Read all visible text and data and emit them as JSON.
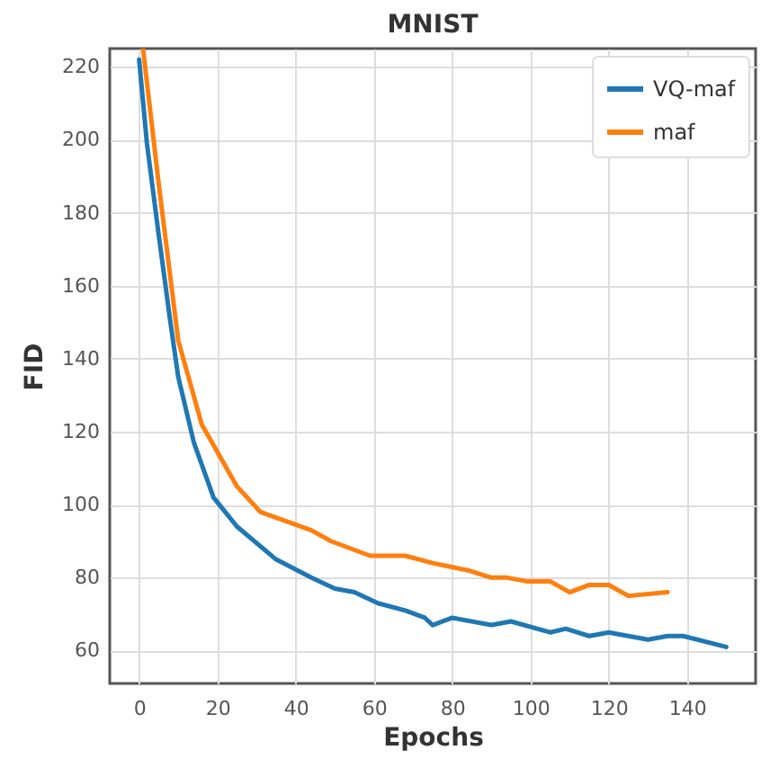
{
  "chart_data": {
    "type": "line",
    "title": "MNIST",
    "xlabel": "Epochs",
    "ylabel": "FID",
    "xlim": [
      -7.5,
      157.5
    ],
    "xticks": [
      0,
      20,
      40,
      60,
      80,
      100,
      120,
      140
    ],
    "ylim": [
      51,
      225
    ],
    "yticks": [
      60,
      80,
      100,
      120,
      140,
      160,
      180,
      200,
      220
    ],
    "grid": true,
    "legend": "top right",
    "line_style": "solid",
    "series": [
      {
        "name": "VQ-maf",
        "color": "#1f77b4",
        "x": [
          0,
          2,
          5,
          8,
          10,
          14,
          19,
          25,
          35,
          44,
          50,
          55,
          61,
          68,
          73,
          75,
          80,
          90,
          95,
          105,
          109,
          115,
          120,
          130,
          135,
          139,
          150
        ],
        "values": [
          222,
          199,
          174,
          150,
          135,
          117,
          102,
          94,
          85,
          80,
          77,
          76,
          73,
          71,
          69,
          67,
          69,
          67,
          68,
          65,
          66,
          64,
          65,
          63,
          64,
          64,
          61
        ]
      },
      {
        "name": "maf",
        "color": "#ff7f0e",
        "x": [
          1,
          5,
          10,
          16,
          25,
          31,
          44,
          49,
          59,
          68,
          75,
          84,
          90,
          94,
          99,
          105,
          110,
          115,
          120,
          125,
          135
        ],
        "values": [
          225,
          188,
          145,
          122,
          105,
          98,
          93,
          90,
          86,
          86,
          84,
          82,
          80,
          80,
          79,
          79,
          76,
          78,
          78,
          75,
          76
        ]
      }
    ]
  }
}
